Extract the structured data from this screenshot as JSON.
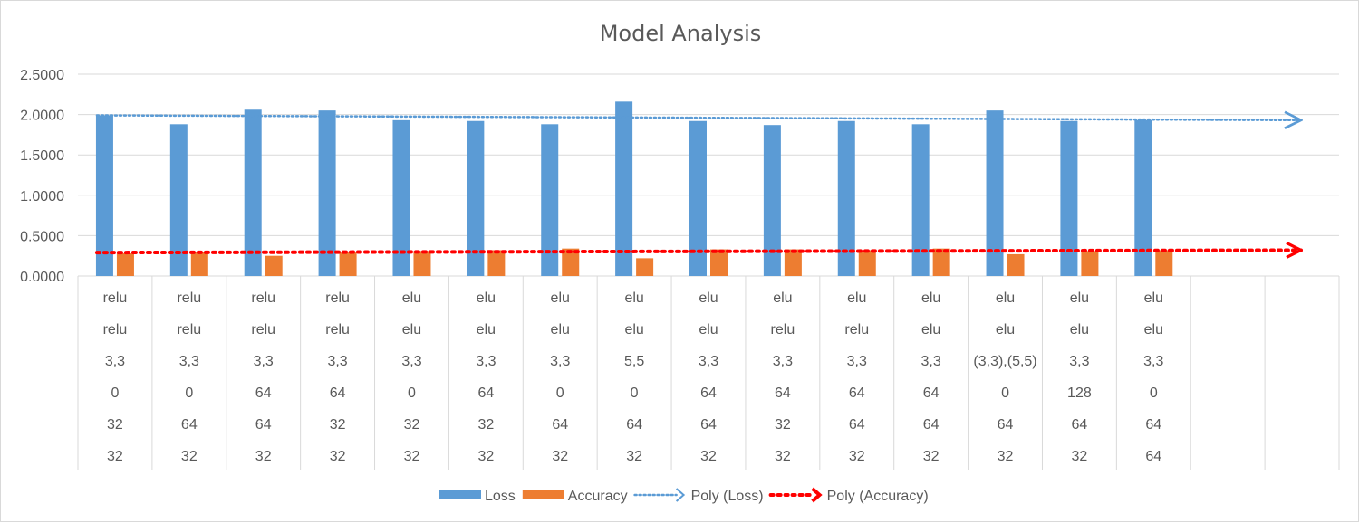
{
  "chart_data": {
    "type": "bar",
    "title": "Model Analysis",
    "xlabel": "",
    "ylabel": "",
    "ylim": [
      0,
      2.5
    ],
    "y_ticks": [
      "0.0000",
      "0.5000",
      "1.0000",
      "1.5000",
      "2.0000",
      "2.5000"
    ],
    "grid": true,
    "legend_position": "bottom",
    "category_rows": [
      [
        "relu",
        "relu",
        "3,3",
        "0",
        "32",
        "32"
      ],
      [
        "relu",
        "relu",
        "3,3",
        "0",
        "64",
        "32"
      ],
      [
        "relu",
        "relu",
        "3,3",
        "64",
        "64",
        "32"
      ],
      [
        "relu",
        "relu",
        "3,3",
        "64",
        "32",
        "32"
      ],
      [
        "elu",
        "elu",
        "3,3",
        "0",
        "32",
        "32"
      ],
      [
        "elu",
        "elu",
        "3,3",
        "64",
        "32",
        "32"
      ],
      [
        "elu",
        "elu",
        "3,3",
        "0",
        "64",
        "32"
      ],
      [
        "elu",
        "elu",
        "5,5",
        "0",
        "64",
        "32"
      ],
      [
        "elu",
        "elu",
        "3,3",
        "64",
        "64",
        "32"
      ],
      [
        "elu",
        "relu",
        "3,3",
        "64",
        "32",
        "32"
      ],
      [
        "elu",
        "relu",
        "3,3",
        "64",
        "64",
        "32"
      ],
      [
        "elu",
        "elu",
        "3,3",
        "64",
        "64",
        "32"
      ],
      [
        "elu",
        "elu",
        "(3,3),(5,5)",
        "0",
        "64",
        "32"
      ],
      [
        "elu",
        "elu",
        "3,3",
        "128",
        "64",
        "32"
      ],
      [
        "elu",
        "elu",
        "3,3",
        "0",
        "64",
        "64"
      ],
      [
        "",
        "",
        "",
        "",
        "",
        ""
      ],
      [
        "",
        "",
        "",
        "",
        "",
        ""
      ]
    ],
    "series": [
      {
        "name": "Loss",
        "kind": "bar",
        "color": "#5b9bd5",
        "values": [
          1.99,
          1.88,
          2.06,
          2.05,
          1.93,
          1.92,
          1.88,
          2.16,
          1.92,
          1.87,
          1.92,
          1.88,
          2.05,
          1.92,
          1.93
        ]
      },
      {
        "name": "Accuracy",
        "kind": "bar",
        "color": "#ed7d31",
        "values": [
          0.28,
          0.3,
          0.25,
          0.29,
          0.31,
          0.32,
          0.34,
          0.22,
          0.33,
          0.33,
          0.32,
          0.34,
          0.27,
          0.31,
          0.32
        ]
      },
      {
        "name": "Poly (Loss)",
        "kind": "trendline",
        "color": "#5b9bd5",
        "values": [
          1.99,
          1.93
        ]
      },
      {
        "name": "Poly (Accuracy)",
        "kind": "trendline",
        "color": "#ff0000",
        "values": [
          0.29,
          0.32
        ]
      }
    ]
  }
}
